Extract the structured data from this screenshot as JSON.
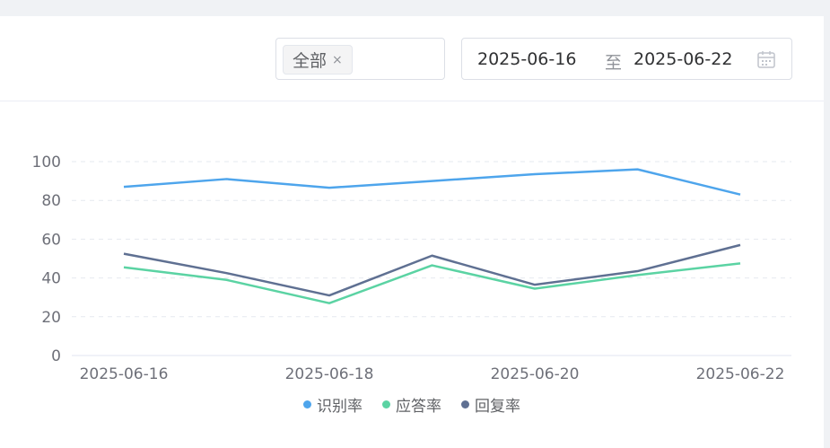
{
  "filter": {
    "tag_label": "全部",
    "tag_close": "×"
  },
  "date_range": {
    "start": "2025-06-16",
    "separator": "至",
    "end": "2025-06-22",
    "icon": "calendar-icon"
  },
  "chart_data": {
    "type": "line",
    "x": [
      "2025-06-16",
      "2025-06-17",
      "2025-06-18",
      "2025-06-19",
      "2025-06-20",
      "2025-06-21",
      "2025-06-22"
    ],
    "x_tick_labels": [
      "2025-06-16",
      "2025-06-18",
      "2025-06-20",
      "2025-06-22"
    ],
    "y_ticks": [
      0,
      20,
      40,
      60,
      80,
      100
    ],
    "ylim": [
      0,
      100
    ],
    "grid": true,
    "legend_position": "bottom-center",
    "series": [
      {
        "name": "识别率",
        "color": "#4ea5ec",
        "values": [
          87,
          91,
          86.5,
          90,
          93.5,
          96,
          83
        ]
      },
      {
        "name": "应答率",
        "color": "#5bd3a3",
        "values": [
          45.5,
          39,
          27,
          46.5,
          34.5,
          41.5,
          47.5
        ]
      },
      {
        "name": "回复率",
        "color": "#5f7092",
        "values": [
          52.5,
          42.5,
          31,
          51.5,
          36.5,
          43.5,
          57
        ]
      }
    ]
  }
}
